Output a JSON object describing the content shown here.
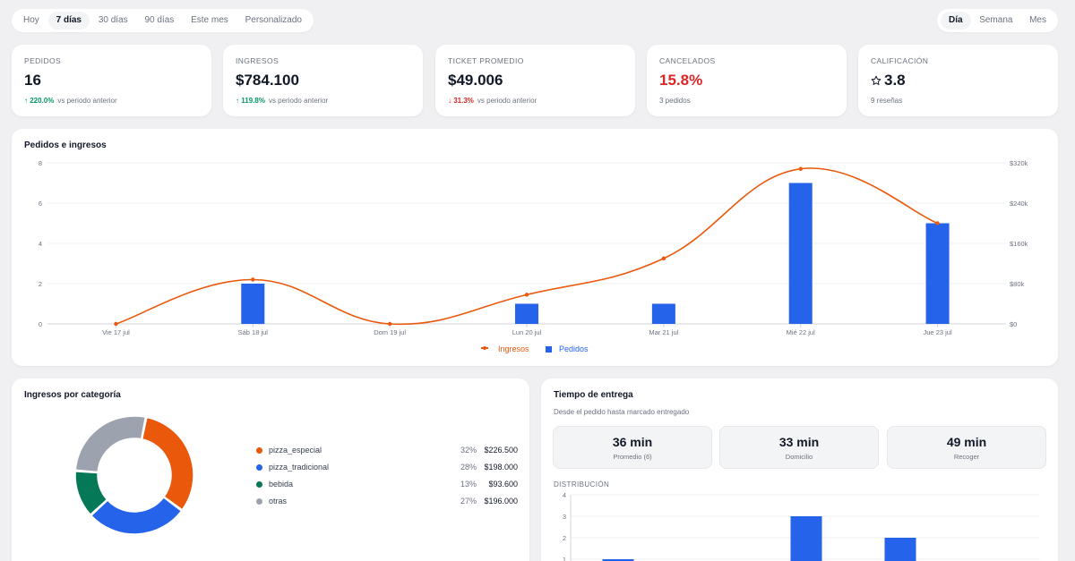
{
  "range_tabs": [
    {
      "label": "Hoy"
    },
    {
      "label": "7 días",
      "active": true
    },
    {
      "label": "30 días"
    },
    {
      "label": "90 días"
    },
    {
      "label": "Este mes"
    },
    {
      "label": "Personalizado"
    }
  ],
  "granularity_tabs": [
    {
      "label": "Día",
      "active": true
    },
    {
      "label": "Semana"
    },
    {
      "label": "Mes"
    }
  ],
  "kpis": {
    "pedidos": {
      "label": "PEDIDOS",
      "value": "16",
      "delta": "220.0%",
      "delta_note": "vs periodo anterior"
    },
    "ingresos": {
      "label": "INGRESOS",
      "value": "$784.100",
      "delta": "119.8%",
      "delta_note": "vs periodo anterior"
    },
    "ticket": {
      "label": "TICKET PROMEDIO",
      "value": "$49.006",
      "delta": "31.3%",
      "delta_note": "vs periodo anterior"
    },
    "cancelados": {
      "label": "CANCELADOS",
      "value": "15.8%",
      "note": "3 pedidos"
    },
    "calificacion": {
      "label": "CALIFICACIÓN",
      "value": "3.8",
      "note": "9 reseñas"
    }
  },
  "colors": {
    "ingresos": "#ea580c",
    "pedidos": "#2563eb",
    "up": "#059669",
    "down": "#dc2626"
  },
  "main_chart": {
    "title": "Pedidos e ingresos",
    "legend": {
      "ingresos": "Ingresos",
      "pedidos": "Pedidos"
    }
  },
  "chart_data": [
    {
      "type": "bar+line",
      "title": "Pedidos e ingresos",
      "categories": [
        "Vie 17 jul",
        "Sáb 18 jul",
        "Dom 19 jul",
        "Lun 20 jul",
        "Mar 21 jul",
        "Mié 22 jul",
        "Jue 23 jul"
      ],
      "series": [
        {
          "name": "Pedidos",
          "type": "bar",
          "axis": "left",
          "values": [
            0,
            2,
            0,
            1,
            1,
            7,
            5
          ]
        },
        {
          "name": "Ingresos",
          "type": "line",
          "axis": "right",
          "values": [
            0,
            88000,
            0,
            58000,
            130000,
            308000,
            200000
          ]
        }
      ],
      "y_left": {
        "ylim": [
          0,
          8
        ],
        "ticks": [
          "0",
          "2",
          "4",
          "6",
          "8"
        ]
      },
      "y_right": {
        "ylim": [
          0,
          320000
        ],
        "ticks": [
          "$0",
          "$80k",
          "$160k",
          "$240k",
          "$320k"
        ]
      },
      "grid": true,
      "legend_position": "bottom"
    },
    {
      "type": "pie",
      "title": "Ingresos por categoría",
      "donut": true,
      "slices": [
        {
          "name": "pizza_especial",
          "pct": "32%",
          "amount": "$226.500",
          "value": 32,
          "color": "#ea580c"
        },
        {
          "name": "pizza_tradicional",
          "pct": "28%",
          "amount": "$198.000",
          "value": 28,
          "color": "#2563eb"
        },
        {
          "name": "bebida",
          "pct": "13%",
          "amount": "$93.600",
          "value": 13,
          "color": "#047857"
        },
        {
          "name": "otras",
          "pct": "27%",
          "amount": "$196.000",
          "value": 27,
          "color": "#9ca3af"
        }
      ]
    },
    {
      "type": "bar",
      "title": "DISTRIBUCIÓN",
      "values": [
        1,
        3,
        2
      ],
      "y_ticks": [
        "1",
        "2",
        "3",
        "4"
      ],
      "ylim": [
        0,
        4
      ],
      "grid": true
    }
  ],
  "category_card": {
    "title": "Ingresos por categoría"
  },
  "delivery": {
    "title": "Tiempo de entrega",
    "subtitle": "Desde el pedido hasta marcado entregado",
    "stats": [
      {
        "value": "36 min",
        "label": "Promedio (6)"
      },
      {
        "value": "33 min",
        "label": "Domicilio"
      },
      {
        "value": "49 min",
        "label": "Recoger"
      }
    ],
    "dist_label": "DISTRIBUCIÓN"
  }
}
